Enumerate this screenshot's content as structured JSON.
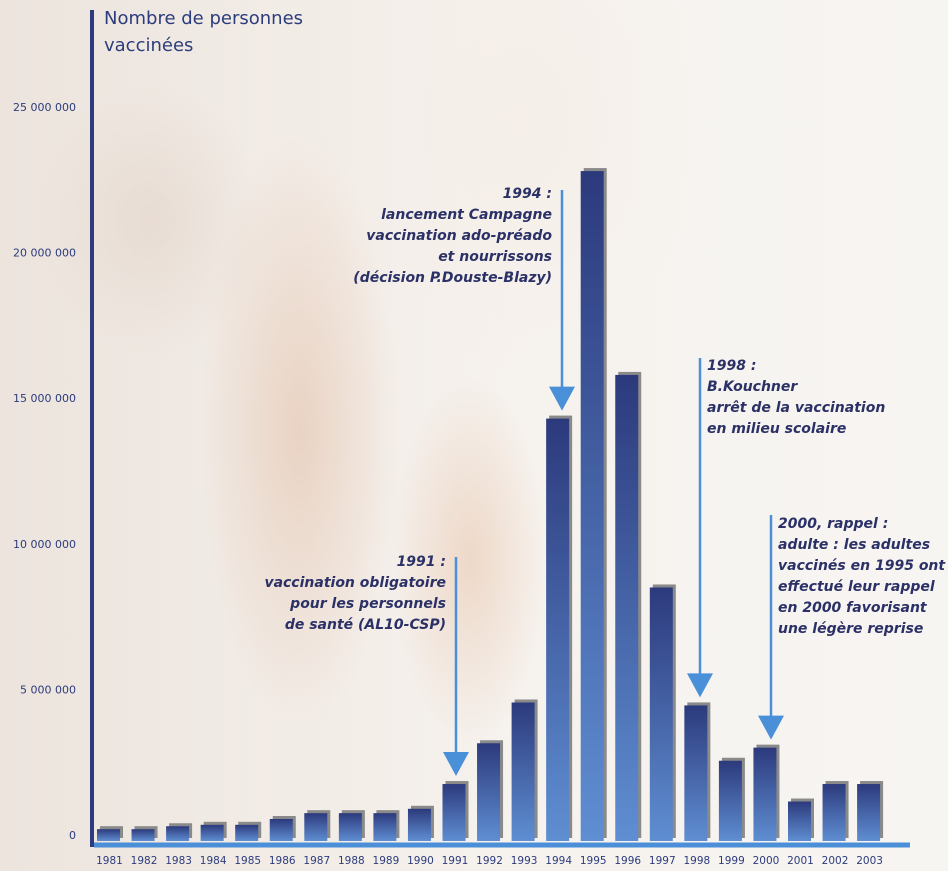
{
  "chart_data": {
    "type": "bar",
    "title": "",
    "ylabel_lines": [
      "Nombre de personnes",
      "vaccinées"
    ],
    "xlabel": "",
    "ylim": [
      0,
      25000000
    ],
    "yticks": [
      {
        "value": 0,
        "label": "0"
      },
      {
        "value": 5000000,
        "label": "5 000 000"
      },
      {
        "value": 10000000,
        "label": "10 000 000"
      },
      {
        "value": 15000000,
        "label": "15 000 000"
      },
      {
        "value": 20000000,
        "label": "20 000 000"
      },
      {
        "value": 25000000,
        "label": "25 000 000"
      }
    ],
    "categories": [
      "1981",
      "1982",
      "1983",
      "1984",
      "1985",
      "1986",
      "1987",
      "1988",
      "1989",
      "1990",
      "1991",
      "1992",
      "1993",
      "1994",
      "1995",
      "1996",
      "1997",
      "1998",
      "1999",
      "2000",
      "2001",
      "2002",
      "2003"
    ],
    "values": [
      200000,
      200000,
      300000,
      350000,
      350000,
      550000,
      750000,
      750000,
      750000,
      900000,
      1750000,
      3150000,
      4550000,
      14300000,
      22800000,
      15800000,
      8500000,
      4450000,
      2550000,
      3000000,
      1150000,
      1750000,
      1750000
    ],
    "grid": false,
    "legend": "none",
    "colors": {
      "bar_top": "#2c3a7c",
      "bar_bottom": "#5f8ed2",
      "bar_shadow": "#8a8a8a",
      "axis": "#2c3c7c",
      "axis_x": "#4a8fd8",
      "arrow": "#4a90d9",
      "annotation": "#2b3166"
    },
    "annotations": [
      {
        "year": "1991",
        "lines": [
          "1991 :",
          "vaccination obligatoire",
          "pour les personnels",
          "de santé (AL10-CSP)"
        ]
      },
      {
        "year": "1994",
        "lines": [
          "1994 :",
          "lancement Campagne",
          "vaccination ado-préado",
          "et nourrissons",
          "(décision P.Douste-Blazy)"
        ]
      },
      {
        "year": "1998",
        "lines": [
          "1998 :",
          "B.Kouchner",
          "arrêt de la vaccination",
          "en milieu scolaire"
        ]
      },
      {
        "year": "2000",
        "lines": [
          "2000, rappel :",
          "adulte : les adultes",
          "vaccinés en 1995 ont",
          "effectué leur rappel",
          "en 2000 favorisant",
          "une légère reprise"
        ]
      }
    ]
  }
}
